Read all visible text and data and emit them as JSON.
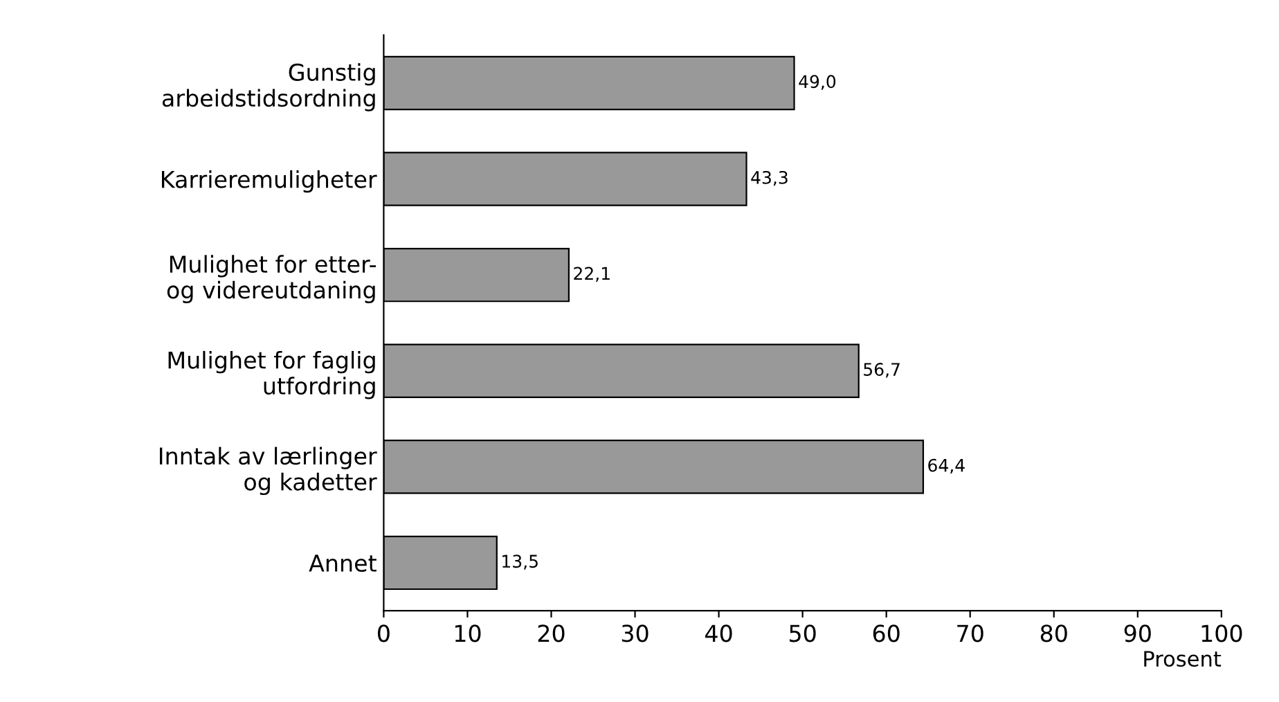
{
  "chart_data": {
    "type": "bar",
    "orientation": "horizontal",
    "categories": [
      "Gunstig\narbeidstidsordning",
      "Karrieremuligheter",
      "Mulighet for etter-\nog videreutdaning",
      "Mulighet for faglig\nutfordring",
      "Inntak av lærlinger\nog kadetter",
      "Annet"
    ],
    "values": [
      49.0,
      43.3,
      22.1,
      56.7,
      64.4,
      13.5
    ],
    "value_labels": [
      "49,0",
      "43,3",
      "22,1",
      "56,7",
      "64,4",
      "13,5"
    ],
    "color": "#999999",
    "xlim": [
      0,
      100
    ],
    "xticks": [
      0,
      10,
      20,
      30,
      40,
      50,
      60,
      70,
      80,
      90,
      100
    ],
    "xlabel": "Prosent",
    "grid": false,
    "legend": false
  }
}
